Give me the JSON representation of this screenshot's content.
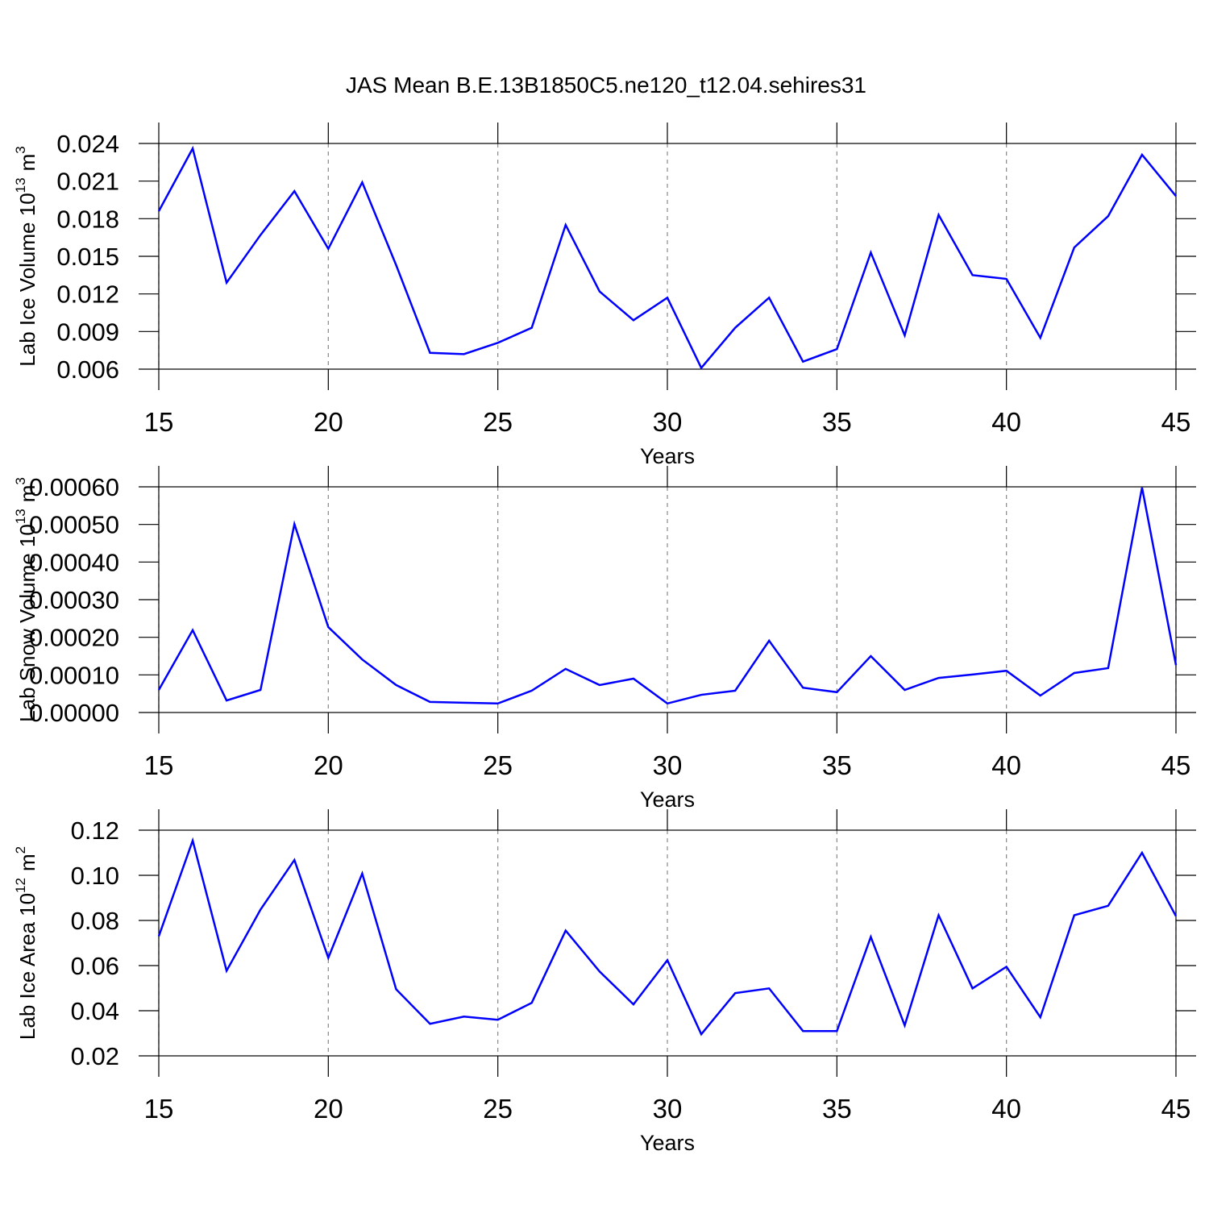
{
  "chart_data": [
    {
      "type": "line",
      "title": "JAS Mean B.E.13B1850C5.ne120_t12.04.sehires31",
      "xlabel": "Years",
      "ylabel": {
        "text": "Lab Ice Volume 10",
        "exponent": "13",
        "unit": "m",
        "unit_exponent": "3"
      },
      "x": [
        15,
        16,
        17,
        18,
        19,
        20,
        21,
        22,
        23,
        24,
        25,
        26,
        27,
        28,
        29,
        30,
        31,
        32,
        33,
        34,
        35,
        36,
        37,
        38,
        39,
        40,
        41,
        42,
        43,
        44,
        45
      ],
      "series": [
        {
          "color": "#0000ff",
          "values": [
            0.0186,
            0.0236,
            0.0129,
            0.0167,
            0.0202,
            0.0156,
            0.0209,
            0.0143,
            0.0073,
            0.0072,
            0.0081,
            0.0093,
            0.0175,
            0.0122,
            0.0099,
            0.0117,
            0.0061,
            0.0093,
            0.0117,
            0.0066,
            0.0076,
            0.0153,
            0.0087,
            0.0183,
            0.0135,
            0.0132,
            0.0085,
            0.0157,
            0.0182,
            0.0231,
            0.0198
          ]
        }
      ],
      "xlim": [
        15,
        45
      ],
      "xticks": [
        15,
        20,
        25,
        30,
        35,
        40,
        45
      ],
      "ylim": [
        0.006,
        0.024
      ],
      "yticks": [
        0.006,
        0.009,
        0.012,
        0.015,
        0.018,
        0.021,
        0.024
      ],
      "grid": true
    },
    {
      "type": "line",
      "xlabel": "Years",
      "ylabel": {
        "text": "Lab Snow Volume 10",
        "exponent": "13",
        "unit": "m",
        "unit_exponent": "3"
      },
      "x": [
        15,
        16,
        17,
        18,
        19,
        20,
        21,
        22,
        23,
        24,
        25,
        26,
        27,
        28,
        29,
        30,
        31,
        32,
        33,
        34,
        35,
        36,
        37,
        38,
        39,
        40,
        41,
        42,
        43,
        44,
        45
      ],
      "series": [
        {
          "color": "#0000ff",
          "values": [
            6e-05,
            0.000219,
            3.2e-05,
            6e-05,
            0.000501,
            0.000227,
            0.000141,
            7.3e-05,
            2.8e-05,
            2.6e-05,
            2.4e-05,
            5.8e-05,
            0.000116,
            7.3e-05,
            9e-05,
            2.4e-05,
            4.7e-05,
            5.8e-05,
            0.000191,
            6.6e-05,
            5.4e-05,
            0.00015,
            6e-05,
            9.2e-05,
            0.000101,
            0.000111,
            4.5e-05,
            0.000105,
            0.000118,
            0.000598,
            0.000126
          ]
        }
      ],
      "xlim": [
        15,
        45
      ],
      "xticks": [
        15,
        20,
        25,
        30,
        35,
        40,
        45
      ],
      "ylim": [
        0,
        0.0006
      ],
      "yticks": [
        {
          "value": 0,
          "label": "0.00000"
        },
        {
          "value": 0.0001,
          "label": "0.00010"
        },
        {
          "value": 0.0002,
          "label": "0.00020"
        },
        {
          "value": 0.0003,
          "label": "0.00030"
        },
        {
          "value": 0.0004,
          "label": "0.00040"
        },
        {
          "value": 0.0005,
          "label": "0.00050"
        },
        {
          "value": 0.0006,
          "label": "0.00060"
        }
      ],
      "grid": true
    },
    {
      "type": "line",
      "xlabel": "Years",
      "ylabel": {
        "text": "Lab Ice Area 10",
        "exponent": "12",
        "unit": "m",
        "unit_exponent": "2"
      },
      "x": [
        15,
        16,
        17,
        18,
        19,
        20,
        21,
        22,
        23,
        24,
        25,
        26,
        27,
        28,
        29,
        30,
        31,
        32,
        33,
        34,
        35,
        36,
        37,
        38,
        39,
        40,
        41,
        42,
        43,
        44,
        45
      ],
      "series": [
        {
          "color": "#0000ff",
          "values": [
            0.073,
            0.1154,
            0.0577,
            0.0848,
            0.1068,
            0.0634,
            0.1008,
            0.0495,
            0.0342,
            0.0374,
            0.036,
            0.0435,
            0.0755,
            0.0574,
            0.0428,
            0.0624,
            0.0296,
            0.0478,
            0.0499,
            0.031,
            0.031,
            0.0727,
            0.0335,
            0.0823,
            0.0499,
            0.0595,
            0.0371,
            0.0823,
            0.0865,
            0.11,
            0.0819
          ]
        }
      ],
      "xlim": [
        15,
        45
      ],
      "xticks": [
        15,
        20,
        25,
        30,
        35,
        40,
        45
      ],
      "ylim": [
        0.02,
        0.12
      ],
      "yticks": [
        0.02,
        0.04,
        0.06,
        0.08,
        {
          "value": 0.1,
          "label": "0.10"
        },
        0.12
      ],
      "grid": true
    }
  ]
}
